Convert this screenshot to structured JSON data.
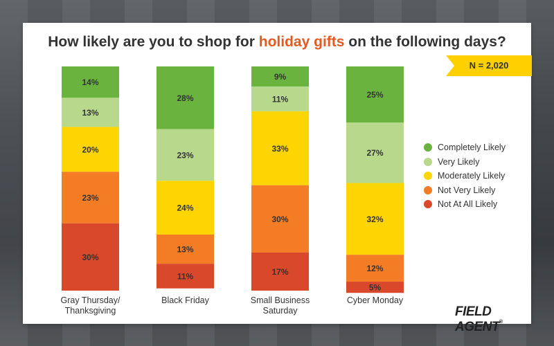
{
  "title": {
    "before": "How likely are you to shop for ",
    "highlight": "holiday gifts",
    "after": " on the following days?"
  },
  "badge": "N = 2,020",
  "logo": "FIELD AGENT",
  "logo_mark": "®",
  "colors": {
    "title": "#333333",
    "highlight": "#e35b21",
    "badge": "#ffd000"
  },
  "chart_data": {
    "type": "bar",
    "stacked": true,
    "categories": [
      [
        "Gray Thursday/",
        "Thanksgiving"
      ],
      [
        "Black Friday"
      ],
      [
        "Small Business",
        "Saturday"
      ],
      [
        "Cyber Monday"
      ]
    ],
    "series": [
      {
        "name": "Completely Likely",
        "color": "#6ab33f",
        "values": [
          14,
          28,
          9,
          25
        ]
      },
      {
        "name": "Very Likely",
        "color": "#b8d98b",
        "values": [
          13,
          23,
          11,
          27
        ]
      },
      {
        "name": "Moderately Likely",
        "color": "#ffd500",
        "values": [
          20,
          24,
          33,
          32
        ]
      },
      {
        "name": "Not Very Likely",
        "color": "#f47c25",
        "values": [
          23,
          13,
          30,
          12
        ]
      },
      {
        "name": "Not At All Likely",
        "color": "#d9482a",
        "values": [
          30,
          11,
          17,
          5
        ]
      }
    ],
    "value_suffix": "%",
    "ylim": [
      0,
      100
    ],
    "legend": "right"
  }
}
